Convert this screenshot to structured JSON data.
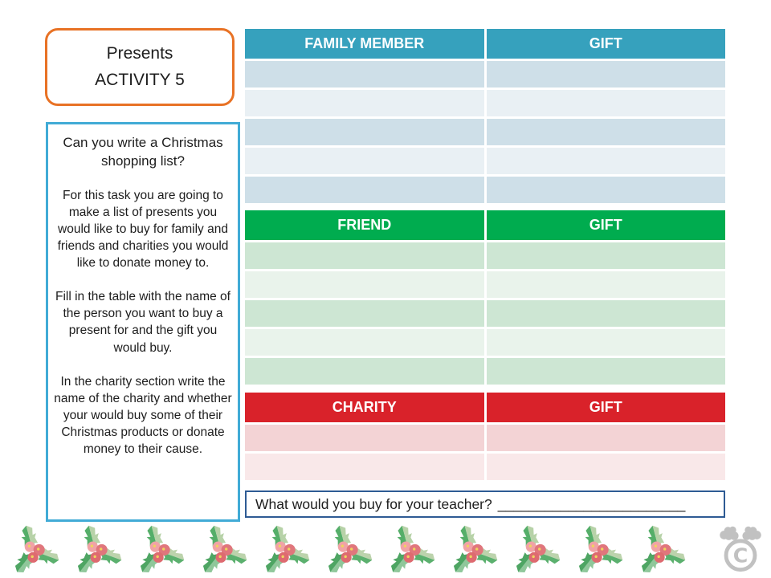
{
  "title_box": {
    "line1": "Presents",
    "line2": "ACTIVITY 5"
  },
  "instructions": {
    "heading": "Can you write a Christmas shopping list?",
    "paragraphs": [
      "For this task you are going to make a list of presents you would like to buy for family and friends and charities you would like to donate money to.",
      "Fill in the table with the name of the person you want to buy a present for and the gift you would buy.",
      "In the charity section write the name of the charity and whether your would buy some of their Christmas products or donate money to their cause."
    ]
  },
  "tables": [
    {
      "id": "family",
      "headers": [
        "FAMILY MEMBER",
        "GIFT"
      ],
      "rows": 5,
      "header_color": "#36A1BD",
      "row_colors": [
        "#CEDFE8",
        "#E9F0F4"
      ]
    },
    {
      "id": "friend",
      "headers": [
        "FRIEND",
        "GIFT"
      ],
      "rows": 5,
      "header_color": "#00AC4F",
      "row_colors": [
        "#CDE6D3",
        "#E9F3EB"
      ]
    },
    {
      "id": "charity",
      "headers": [
        "CHARITY",
        "GIFT"
      ],
      "rows": 2,
      "header_color": "#D9222A",
      "row_colors": [
        "#F3D3D5",
        "#F9E8E9"
      ]
    }
  ],
  "teacher_question": {
    "label": "What would you buy for your teacher?",
    "blank": "________________________"
  },
  "footer": {
    "holly_icon": "holly-sprig",
    "holly_count": 11,
    "logo_icon": "moose-copyright",
    "logo_symbol": "C"
  },
  "accent_colors": {
    "title_border": "#E87225",
    "instructions_border": "#41ABD6",
    "teacher_border": "#2E5B94",
    "logo_gray": "#C1C1C1"
  }
}
